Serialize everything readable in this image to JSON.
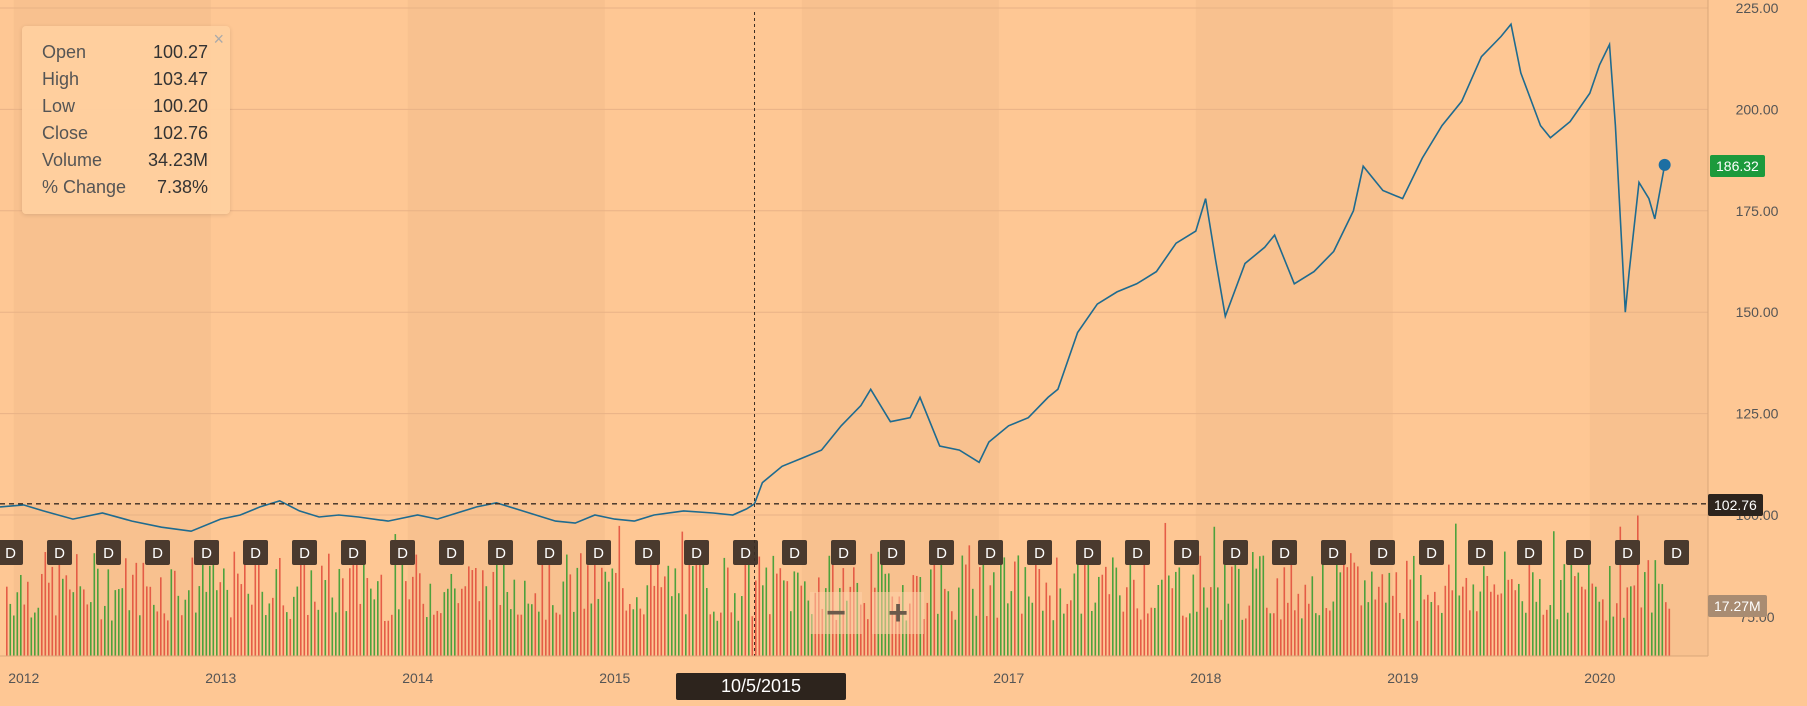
{
  "tooltip": {
    "rows": [
      {
        "label": "Open",
        "value": "100.27"
      },
      {
        "label": "High",
        "value": "103.47"
      },
      {
        "label": "Low",
        "value": "100.20"
      },
      {
        "label": "Close",
        "value": "102.76"
      },
      {
        "label": "Volume",
        "value": "34.23M"
      },
      {
        "label": "% Change",
        "value": "7.38%"
      }
    ],
    "close_glyph": "×"
  },
  "badges": {
    "last_price": "186.32",
    "crosshair_price": "102.76",
    "volume": "17.27M",
    "crosshair_date": "10/5/2015"
  },
  "zoom": {
    "minus": "−",
    "plus": "+"
  },
  "dividend_marker": "D",
  "colors": {
    "line": "#1f6b8f",
    "up": "#2e9b2e",
    "down": "#e04a3a",
    "last_badge": "#1c9a3c",
    "dark_badge": "#2d241d",
    "volume_badge": "#a98c72"
  },
  "chart_data": {
    "type": "line",
    "ylim": [
      100,
      220
    ],
    "y_ticks": [
      100,
      125,
      150,
      175,
      200,
      225
    ],
    "y_tick_labels": [
      "100.00",
      "125.00",
      "150.00",
      "175.00",
      "200.00",
      "225.00"
    ],
    "xlim": [
      2011.93,
      2020.6
    ],
    "x_ticks": [
      2012,
      2013,
      2014,
      2015,
      2017,
      2018,
      2019,
      2020
    ],
    "x_tick_labels": [
      "2012",
      "2013",
      "2014",
      "2015",
      "2017",
      "2018",
      "2019",
      "2020"
    ],
    "crosshair": {
      "x": 2015.76,
      "y": 102.76
    },
    "last_point": {
      "x": 2020.38,
      "y": 186.32
    },
    "series": [
      {
        "x": [
          2011.93,
          2012.05,
          2012.15,
          2012.3,
          2012.45,
          2012.6,
          2012.75,
          2012.9,
          2013.05,
          2013.15,
          2013.25,
          2013.35,
          2013.45,
          2013.55,
          2013.65,
          2013.75,
          2013.9,
          2014.05,
          2014.15,
          2014.25,
          2014.35,
          2014.45,
          2014.55,
          2014.65,
          2014.75,
          2014.85,
          2014.95,
          2015.05,
          2015.15,
          2015.25,
          2015.4,
          2015.55,
          2015.65,
          2015.72,
          2015.76,
          2015.8,
          2015.9,
          2016.0,
          2016.1,
          2016.2,
          2016.3,
          2016.35,
          2016.45,
          2016.55,
          2016.6,
          2016.7,
          2016.8,
          2016.9,
          2016.95,
          2017.05,
          2017.15,
          2017.25,
          2017.3,
          2017.4,
          2017.5,
          2017.6,
          2017.7,
          2017.8,
          2017.9,
          2018.0,
          2018.05,
          2018.1,
          2018.15,
          2018.25,
          2018.35,
          2018.4,
          2018.5,
          2018.6,
          2018.7,
          2018.8,
          2018.85,
          2018.95,
          2019.05,
          2019.15,
          2019.25,
          2019.35,
          2019.45,
          2019.55,
          2019.6,
          2019.65,
          2019.75,
          2019.8,
          2019.9,
          2020.0,
          2020.05,
          2020.1,
          2020.13,
          2020.18,
          2020.2,
          2020.25,
          2020.3,
          2020.33,
          2020.38
        ],
        "y": [
          102.0,
          102.5,
          101.0,
          99.0,
          100.5,
          98.5,
          97.0,
          96.0,
          99.0,
          100.0,
          102.0,
          103.5,
          101.0,
          99.5,
          100.0,
          99.5,
          98.5,
          100.0,
          99.0,
          100.5,
          102.0,
          103.0,
          101.5,
          100.0,
          98.5,
          98.0,
          100.0,
          99.0,
          98.5,
          100.0,
          101.0,
          100.5,
          100.0,
          101.5,
          102.76,
          108.0,
          112.0,
          114.0,
          116.0,
          122.0,
          127.0,
          131.0,
          123.0,
          124.0,
          129.0,
          117.0,
          116.0,
          113.0,
          118.0,
          122.0,
          124.0,
          129.0,
          131.0,
          145.0,
          152.0,
          155.0,
          157.0,
          160.0,
          167.0,
          170.0,
          178.0,
          163.0,
          149.0,
          162.0,
          166.0,
          169.0,
          157.0,
          160.0,
          165.0,
          175.0,
          186.0,
          180.0,
          178.0,
          188.0,
          196.0,
          202.0,
          213.0,
          218.0,
          221.0,
          209.0,
          196.0,
          193.0,
          197.0,
          204.0,
          211.0,
          216.0,
          196.0,
          150.0,
          160.0,
          182.0,
          178.0,
          173.0,
          186.32
        ]
      }
    ],
    "volume_y_tick_labels": [
      "",
      "75.00"
    ]
  }
}
